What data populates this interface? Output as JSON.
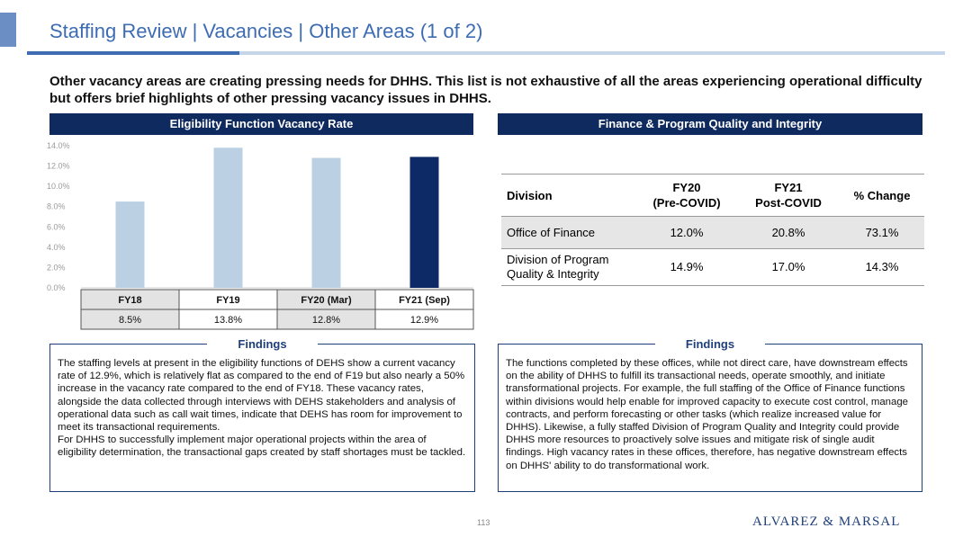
{
  "header": {
    "title": "Staffing Review | Vacancies | Other Areas (1 of 2)"
  },
  "intro": "Other vacancy areas are creating pressing needs for DHHS. This list is not exhaustive of all the areas experiencing operational difficulty but offers brief highlights of other pressing vacancy issues in DHHS.",
  "left_panel": {
    "heading": "Eligibility Function Vacancy Rate",
    "table_values": [
      "8.5%",
      "13.8%",
      "12.8%",
      "12.9%"
    ],
    "findings_title": "Findings",
    "findings_p1": "The staffing levels at present in the eligibility functions of DEHS show a current vacancy rate of 12.9%, which is relatively flat as compared to the end of F19 but also nearly a 50% increase in the vacancy rate compared to the end of FY18. These vacancy rates, alongside the data collected through interviews with DEHS stakeholders and analysis of operational data such as call wait times, indicate that DEHS has room for improvement to meet its transactional requirements.",
    "findings_p2": "For DHHS to successfully implement major operational projects within the area of eligibility determination, the transactional gaps created by staff shortages must be tackled."
  },
  "chart_data": {
    "type": "bar",
    "categories": [
      "FY18",
      "FY19",
      "FY20 (Mar)",
      "FY21 (Sep)"
    ],
    "values": [
      8.5,
      13.8,
      12.8,
      12.9
    ],
    "ylim": [
      0,
      14
    ],
    "yticks": [
      "0.0%",
      "2.0%",
      "4.0%",
      "6.0%",
      "8.0%",
      "10.0%",
      "12.0%",
      "14.0%"
    ],
    "grid": false,
    "colors": [
      "#bcd0e4",
      "#bcd0e4",
      "#bcd0e4",
      "#0d2a66"
    ]
  },
  "right_panel": {
    "heading": "Finance & Program Quality and Integrity",
    "columns": {
      "division": "Division",
      "fy20_line1": "FY20",
      "fy20_line2": "(Pre-COVID)",
      "fy21_line1": "FY21",
      "fy21_line2": "Post-COVID",
      "change": "% Change"
    },
    "rows": [
      {
        "division_line1": "Office of Finance",
        "division_line2": "",
        "fy20": "12.0%",
        "fy21": "20.8%",
        "change": "73.1%"
      },
      {
        "division_line1": "Division of Program",
        "division_line2": "Quality & Integrity",
        "fy20": "14.9%",
        "fy21": "17.0%",
        "change": "14.3%"
      }
    ],
    "findings_title": "Findings",
    "findings_text": "The functions completed by these offices, while not direct care, have downstream effects on the ability of DHHS to fulfill its transactional needs, operate smoothly, and initiate transformational projects. For example, the full staffing of the Office of Finance functions within divisions would help enable for improved capacity to execute cost control, manage contracts, and perform forecasting or other tasks (which realize increased value for DHHS). Likewise, a fully staffed Division of Program Quality and Integrity could provide DHHS more resources to proactively solve issues and mitigate risk of single audit findings. High vacancy rates in these offices, therefore, has negative downstream effects on DHHS' ability to do transformational work."
  },
  "footer": {
    "page_number": "113",
    "logo_text": "ALVAREZ & MARSAL"
  }
}
